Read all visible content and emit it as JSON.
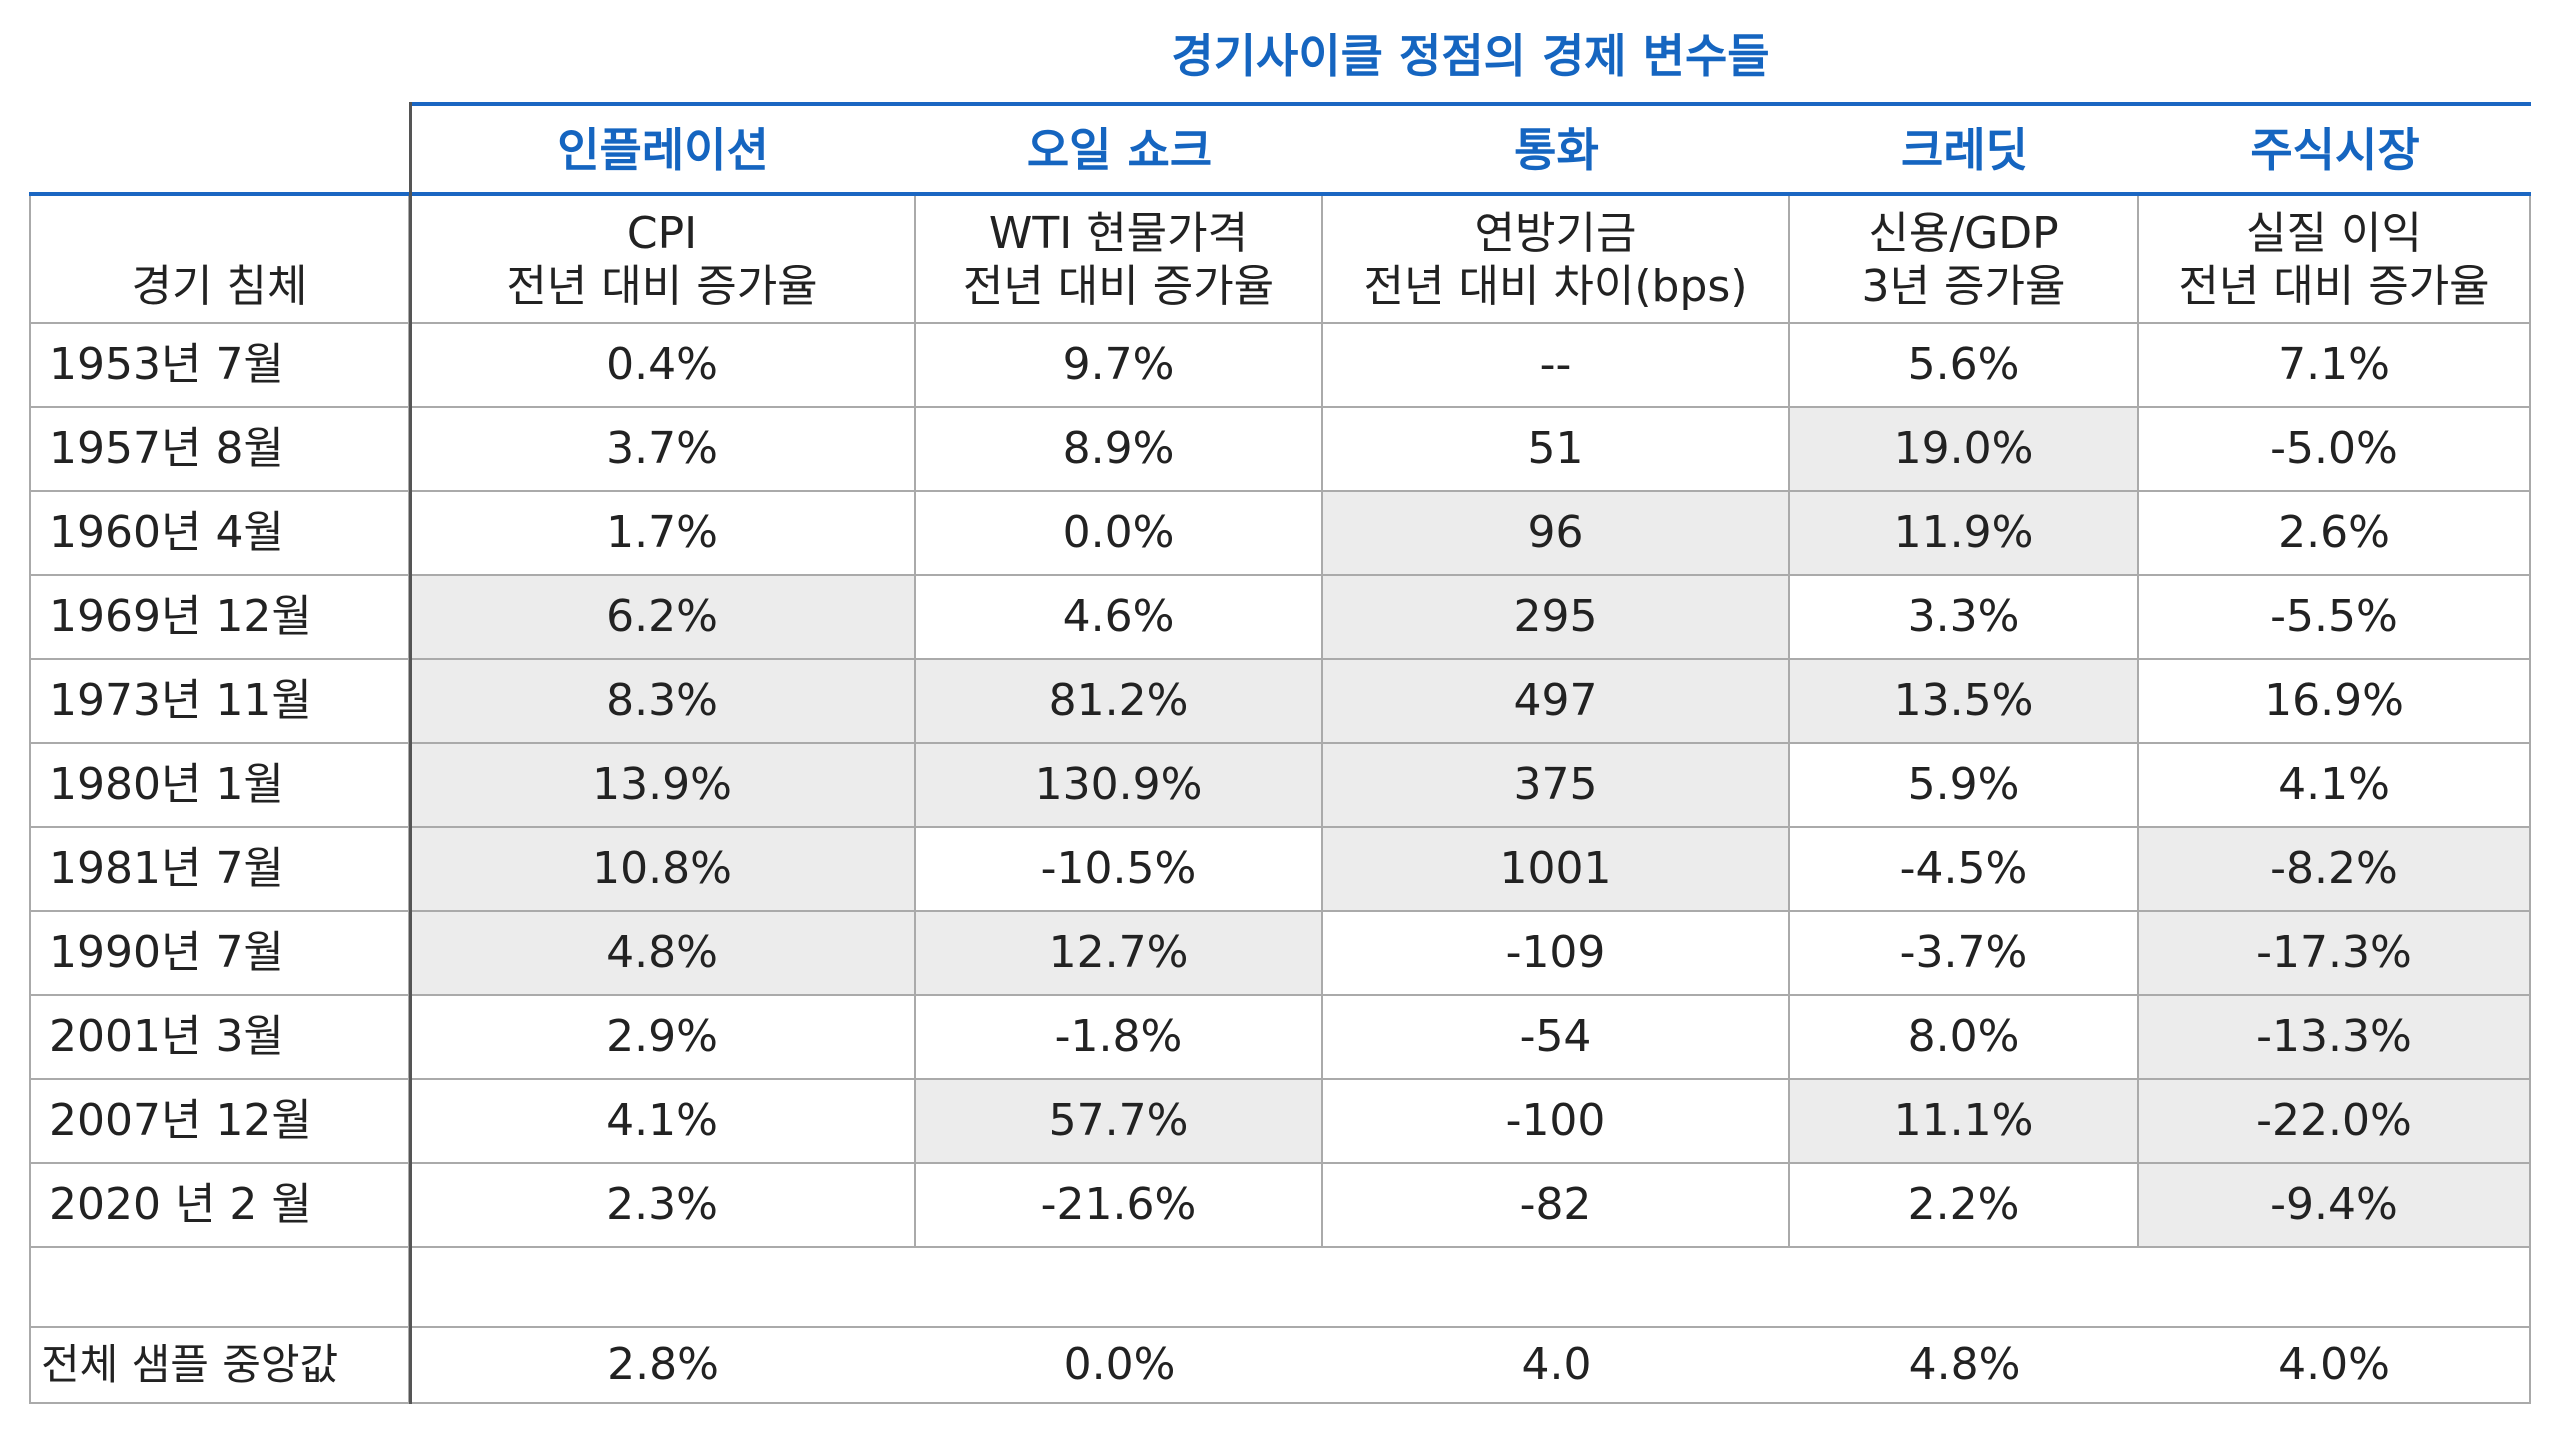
{
  "title": "경기사이클 정점의 경제 변수들",
  "groups": [
    "인플레이션",
    "오일 쇼크",
    "통화",
    "크레딧",
    "주식시장"
  ],
  "header": {
    "row_label": "경기 침체",
    "columns": [
      [
        "CPI",
        "전년 대비 증가율"
      ],
      [
        "WTI 현물가격",
        "전년 대비 증가율"
      ],
      [
        "연방기금",
        "전년 대비 차이(bps)"
      ],
      [
        "신용/GDP",
        "3년 증가율"
      ],
      [
        "실질 이익",
        "전년 대비 증가율"
      ]
    ]
  },
  "rows": [
    {
      "label": "1953년 7월",
      "cells": [
        "0.4%",
        "9.7%",
        "--",
        "5.6%",
        "7.1%"
      ],
      "shaded": [
        false,
        false,
        false,
        false,
        false
      ]
    },
    {
      "label": "1957년 8월",
      "cells": [
        "3.7%",
        "8.9%",
        "51",
        "19.0%",
        "-5.0%"
      ],
      "shaded": [
        false,
        false,
        false,
        true,
        false
      ]
    },
    {
      "label": "1960년 4월",
      "cells": [
        "1.7%",
        "0.0%",
        "96",
        "11.9%",
        "2.6%"
      ],
      "shaded": [
        false,
        false,
        true,
        true,
        false
      ]
    },
    {
      "label": "1969년 12월",
      "cells": [
        "6.2%",
        "4.6%",
        "295",
        "3.3%",
        "-5.5%"
      ],
      "shaded": [
        true,
        false,
        true,
        false,
        false
      ]
    },
    {
      "label": "1973년 11월",
      "cells": [
        "8.3%",
        "81.2%",
        "497",
        "13.5%",
        "16.9%"
      ],
      "shaded": [
        true,
        true,
        true,
        true,
        false
      ]
    },
    {
      "label": "1980년 1월",
      "cells": [
        "13.9%",
        "130.9%",
        "375",
        "5.9%",
        "4.1%"
      ],
      "shaded": [
        true,
        true,
        true,
        false,
        false
      ]
    },
    {
      "label": "1981년 7월",
      "cells": [
        "10.8%",
        "-10.5%",
        "1001",
        "-4.5%",
        "-8.2%"
      ],
      "shaded": [
        true,
        false,
        true,
        false,
        true
      ]
    },
    {
      "label": "1990년 7월",
      "cells": [
        "4.8%",
        "12.7%",
        "-109",
        "-3.7%",
        "-17.3%"
      ],
      "shaded": [
        true,
        true,
        false,
        false,
        true
      ]
    },
    {
      "label": "2001년 3월",
      "cells": [
        "2.9%",
        "-1.8%",
        "-54",
        "8.0%",
        "-13.3%"
      ],
      "shaded": [
        false,
        false,
        false,
        false,
        true
      ]
    },
    {
      "label": "2007년 12월",
      "cells": [
        "4.1%",
        "57.7%",
        "-100",
        "11.1%",
        "-22.0%"
      ],
      "shaded": [
        false,
        true,
        false,
        true,
        true
      ]
    },
    {
      "label": "2020 년 2 월",
      "cells": [
        "2.3%",
        "-21.6%",
        "-82",
        "2.2%",
        "-9.4%"
      ],
      "shaded": [
        false,
        false,
        false,
        false,
        true
      ]
    }
  ],
  "median": {
    "label": "전체 샘플 중앙값",
    "cells": [
      "2.8%",
      "0.0%",
      "4.0",
      "4.8%",
      "4.0%"
    ]
  }
}
